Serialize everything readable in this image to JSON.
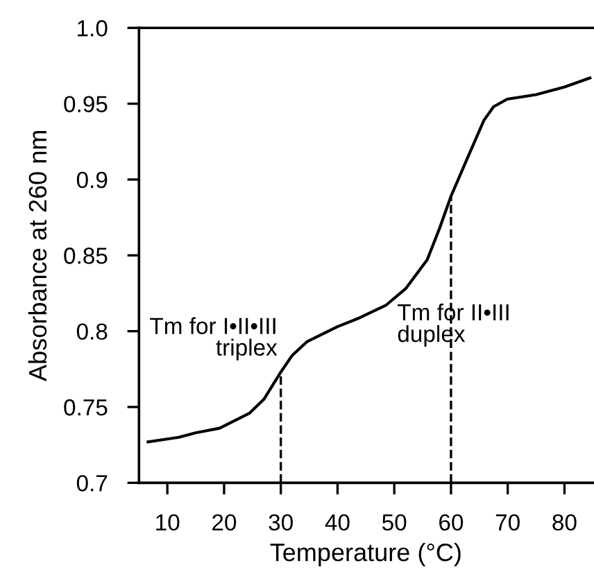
{
  "chart_data": {
    "type": "line",
    "xlabel": "Temperature (°C)",
    "ylabel": "Absorbance at 260 nm",
    "series": [
      {
        "color": "#000000",
        "x": [
          6.6,
          12,
          15,
          19.2,
          24.5,
          27,
          30,
          32,
          34.6,
          40,
          44,
          48.5,
          52,
          55.8,
          58,
          60,
          63,
          65.8,
          67.5,
          69.9,
          75,
          80,
          84.5
        ],
        "values": [
          0.727,
          0.73,
          0.733,
          0.736,
          0.746,
          0.755,
          0.773,
          0.784,
          0.793,
          0.803,
          0.809,
          0.817,
          0.828,
          0.847,
          0.868,
          0.889,
          0.915,
          0.939,
          0.948,
          0.953,
          0.956,
          0.961,
          0.967
        ]
      }
    ],
    "xlim": [
      5,
      85
    ],
    "ylim": [
      0.7,
      1.0
    ],
    "xticks": [
      10,
      20,
      30,
      40,
      50,
      60,
      70,
      80
    ],
    "yticks": [
      {
        "value": 0.7,
        "label": "0.7"
      },
      {
        "value": 0.75,
        "label": "0.75"
      },
      {
        "value": 0.8,
        "label": "0.8"
      },
      {
        "value": 0.85,
        "label": "0.85"
      },
      {
        "value": 0.9,
        "label": "0.9"
      },
      {
        "value": 0.95,
        "label": "0.95"
      },
      {
        "value": 1.0,
        "label": "1.0"
      }
    ],
    "ref_lines": [
      {
        "axis": "x",
        "value": 30,
        "label": "Tm for I•II•III\ntriplex",
        "color": "#000000",
        "line_style": "dashed"
      },
      {
        "axis": "x",
        "value": 60,
        "label": "Tm for II•III\nduplex",
        "color": "#000000",
        "line_style": "dashed"
      }
    ],
    "grid": false,
    "legend": false,
    "marker": "none",
    "line_style": "solid"
  }
}
